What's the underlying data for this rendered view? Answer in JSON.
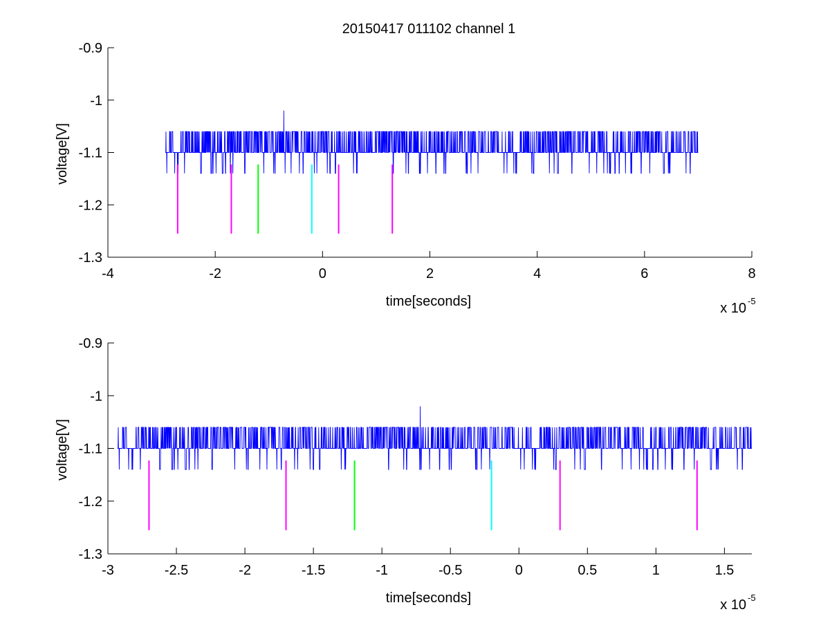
{
  "figure": {
    "title": "20150417 011102 channel 1"
  },
  "colors": {
    "signal": "#0000ff",
    "magenta": "#ff00ff",
    "green": "#00ff00",
    "cyan": "#00ffff",
    "axis": "#000000"
  },
  "chart_data": [
    {
      "type": "line",
      "title": "20150417 011102 channel 1",
      "xlabel": "time[seconds]",
      "ylabel": "voltage[V]",
      "x_exponent_label": "x 10",
      "x_exponent": "-5",
      "xlim": [
        -4e-05,
        8e-05
      ],
      "ylim": [
        -1.3,
        -0.9
      ],
      "y_reversed": true,
      "grid": false,
      "xticks": [
        -4e-05,
        -2e-05,
        0,
        2e-05,
        4e-05,
        6e-05,
        8e-05
      ],
      "xtick_labels": [
        "-4",
        "-2",
        "0",
        "2",
        "4",
        "6",
        "8"
      ],
      "yticks": [
        -0.9,
        -1.0,
        -1.1,
        -1.2,
        -1.3
      ],
      "ytick_labels": [
        "-0.9",
        "-1",
        "-1.1",
        "-1.2",
        "-1.3"
      ],
      "signal": {
        "t_start": -2.93e-05,
        "t_end": 7e-05,
        "baseline": -1.1,
        "high": -1.06,
        "low": -1.14,
        "peak": {
          "t": -7.2e-06,
          "v": -1.02
        }
      },
      "markers": [
        {
          "t": -2.7e-05,
          "color": "magenta",
          "v_top": -1.123,
          "v_bottom": -1.255
        },
        {
          "t": -1.7e-05,
          "color": "magenta",
          "v_top": -1.123,
          "v_bottom": -1.255
        },
        {
          "t": -1.2e-05,
          "color": "green",
          "v_top": -1.123,
          "v_bottom": -1.255
        },
        {
          "t": -2e-06,
          "color": "cyan",
          "v_top": -1.123,
          "v_bottom": -1.255
        },
        {
          "t": 3e-06,
          "color": "magenta",
          "v_top": -1.123,
          "v_bottom": -1.255
        },
        {
          "t": 1.3e-05,
          "color": "magenta",
          "v_top": -1.123,
          "v_bottom": -1.255
        }
      ]
    },
    {
      "type": "line",
      "title": "",
      "xlabel": "time[seconds]",
      "ylabel": "voltage[V]",
      "x_exponent_label": "x 10",
      "x_exponent": "-5",
      "xlim": [
        -3e-05,
        1.7e-05
      ],
      "ylim": [
        -1.3,
        -0.9
      ],
      "y_reversed": true,
      "grid": false,
      "xticks": [
        -3e-05,
        -2.5e-05,
        -2e-05,
        -1.5e-05,
        -1e-05,
        -5e-06,
        0,
        5e-06,
        1e-05,
        1.5e-05
      ],
      "xtick_labels": [
        "-3",
        "-2.5",
        "-2",
        "-1.5",
        "-1",
        "-0.5",
        "0",
        "0.5",
        "1",
        "1.5"
      ],
      "yticks": [
        -0.9,
        -1.0,
        -1.1,
        -1.2,
        -1.3
      ],
      "ytick_labels": [
        "-0.9",
        "-1",
        "-1.1",
        "-1.2",
        "-1.3"
      ],
      "signal": {
        "t_start": -2.93e-05,
        "t_end": 1.7e-05,
        "baseline": -1.1,
        "high": -1.06,
        "low": -1.14,
        "peak": {
          "t": -7.2e-06,
          "v": -1.02
        }
      },
      "markers": [
        {
          "t": -2.7e-05,
          "color": "magenta",
          "v_top": -1.123,
          "v_bottom": -1.255
        },
        {
          "t": -1.7e-05,
          "color": "magenta",
          "v_top": -1.123,
          "v_bottom": -1.255
        },
        {
          "t": -1.2e-05,
          "color": "green",
          "v_top": -1.123,
          "v_bottom": -1.255
        },
        {
          "t": -2e-06,
          "color": "cyan",
          "v_top": -1.123,
          "v_bottom": -1.255
        },
        {
          "t": 3e-06,
          "color": "magenta",
          "v_top": -1.123,
          "v_bottom": -1.255
        },
        {
          "t": 1.3e-05,
          "color": "magenta",
          "v_top": -1.123,
          "v_bottom": -1.255
        }
      ]
    }
  ]
}
